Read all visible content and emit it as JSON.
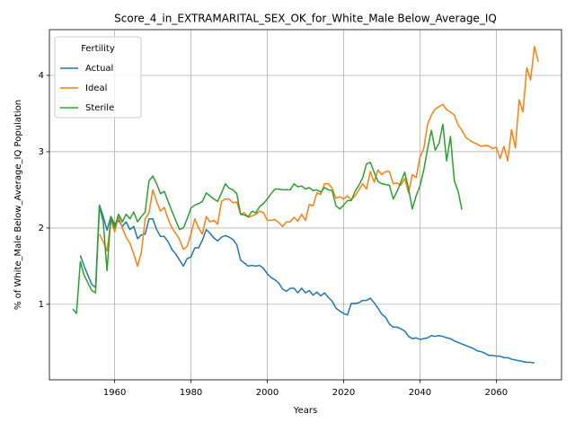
{
  "chart_data": {
    "type": "line",
    "title": "Score_4_in_EXTRAMARITAL_SEX_OK_for_White_Male Below_Average_IQ",
    "xlabel": "Years",
    "ylabel": "% of White_Male Below_Average_IQ Population",
    "legend_title": "Fertility",
    "legend": "upper left",
    "grid": true,
    "xlim": [
      1942.9,
      2077.1
    ],
    "ylim": [
      0.01,
      4.6
    ],
    "xticks": [
      1960,
      1980,
      2000,
      2020,
      2040,
      2060
    ],
    "yticks": [
      1,
      2,
      3,
      4
    ],
    "x": [
      1949,
      1950,
      1951,
      1952,
      1953,
      1954,
      1955,
      1956,
      1957,
      1958,
      1959,
      1960,
      1961,
      1962,
      1963,
      1964,
      1965,
      1966,
      1967,
      1968,
      1969,
      1970,
      1971,
      1972,
      1973,
      1974,
      1975,
      1976,
      1977,
      1978,
      1979,
      1980,
      1981,
      1982,
      1983,
      1984,
      1985,
      1986,
      1987,
      1988,
      1989,
      1990,
      1991,
      1992,
      1993,
      1994,
      1995,
      1996,
      1997,
      1998,
      1999,
      2000,
      2001,
      2002,
      2003,
      2004,
      2005,
      2006,
      2007,
      2008,
      2009,
      2010,
      2011,
      2012,
      2013,
      2014,
      2015,
      2016,
      2017,
      2018,
      2019,
      2020,
      2021,
      2022,
      2023,
      2024,
      2025,
      2026,
      2027,
      2028,
      2029,
      2030,
      2031,
      2032,
      2033,
      2034,
      2035,
      2036,
      2037,
      2038,
      2039,
      2040,
      2041,
      2042,
      2043,
      2044,
      2045,
      2046,
      2047,
      2048,
      2049,
      2050,
      2051,
      2052,
      2053,
      2054,
      2055,
      2056,
      2057,
      2058,
      2059,
      2060,
      2061,
      2062,
      2063,
      2064,
      2065,
      2066,
      2067,
      2068,
      2069,
      2070,
      2071
    ],
    "series": [
      {
        "name": "Actual",
        "color": "#1f77b4",
        "values": [
          null,
          null,
          1.64,
          1.5,
          1.38,
          1.26,
          1.22,
          2.3,
          2.15,
          1.97,
          2.15,
          2.05,
          2.1,
          2.02,
          2.08,
          1.98,
          2.02,
          1.86,
          1.91,
          1.92,
          2.12,
          2.12,
          1.98,
          1.89,
          1.89,
          1.82,
          1.72,
          1.66,
          1.58,
          1.5,
          1.6,
          1.62,
          1.74,
          1.74,
          1.84,
          1.98,
          1.93,
          1.87,
          1.83,
          1.88,
          1.9,
          1.88,
          1.85,
          1.78,
          1.58,
          1.54,
          1.5,
          1.51,
          1.5,
          1.51,
          1.47,
          1.4,
          1.35,
          1.32,
          1.28,
          1.2,
          1.17,
          1.21,
          1.21,
          1.15,
          1.21,
          1.15,
          1.18,
          1.12,
          1.16,
          1.11,
          1.15,
          1.09,
          1.04,
          0.95,
          0.91,
          0.88,
          0.86,
          1.01,
          1.01,
          1.02,
          1.05,
          1.05,
          1.08,
          1.02,
          0.95,
          0.87,
          0.83,
          0.74,
          0.7,
          0.7,
          0.68,
          0.65,
          0.58,
          0.55,
          0.56,
          0.54,
          0.55,
          0.56,
          0.59,
          0.58,
          0.59,
          0.58,
          0.56,
          0.55,
          0.52,
          0.5,
          0.48,
          0.46,
          0.44,
          0.42,
          0.39,
          0.38,
          0.36,
          0.33,
          0.33,
          0.32,
          0.32,
          0.3,
          0.3,
          0.28,
          0.27,
          0.26,
          0.25,
          0.24,
          0.24,
          0.23,
          null
        ]
      },
      {
        "name": "Ideal",
        "color": "#ff7f0e",
        "values": [
          null,
          null,
          null,
          null,
          null,
          null,
          null,
          1.92,
          1.82,
          1.7,
          2.1,
          1.95,
          2.15,
          2.0,
          1.88,
          1.8,
          1.66,
          1.5,
          1.68,
          2.12,
          2.2,
          2.5,
          2.35,
          2.22,
          2.27,
          2.12,
          2.0,
          1.93,
          1.85,
          1.72,
          1.76,
          1.92,
          2.12,
          2.0,
          1.92,
          2.15,
          2.08,
          2.1,
          2.05,
          2.35,
          2.38,
          2.38,
          2.33,
          2.34,
          2.18,
          2.2,
          2.14,
          2.16,
          2.18,
          2.22,
          2.2,
          2.1,
          2.1,
          2.11,
          2.07,
          2.02,
          2.08,
          2.08,
          2.14,
          2.09,
          2.18,
          2.1,
          2.31,
          2.29,
          2.46,
          2.44,
          2.58,
          2.58,
          2.52,
          2.39,
          2.41,
          2.38,
          2.42,
          2.37,
          2.42,
          2.5,
          2.58,
          2.51,
          2.74,
          2.6,
          2.76,
          2.7,
          2.74,
          2.74,
          2.58,
          2.59,
          2.56,
          2.65,
          2.46,
          2.7,
          2.66,
          2.93,
          3.04,
          3.36,
          3.48,
          3.56,
          3.59,
          3.62,
          3.55,
          3.52,
          3.48,
          3.35,
          3.28,
          3.19,
          3.15,
          3.12,
          3.1,
          3.07,
          3.08,
          3.08,
          3.04,
          3.06,
          2.91,
          3.07,
          2.88,
          3.29,
          3.05,
          3.68,
          3.52,
          4.1,
          3.94,
          4.38,
          4.18
        ]
      },
      {
        "name": "Sterile",
        "color": "#2ca02c",
        "values": [
          0.94,
          0.88,
          1.56,
          1.38,
          1.28,
          1.18,
          1.15,
          2.28,
          2.08,
          1.44,
          2.15,
          2.0,
          2.18,
          2.08,
          2.18,
          2.12,
          2.21,
          2.08,
          2.15,
          2.21,
          2.62,
          2.68,
          2.58,
          2.45,
          2.48,
          2.35,
          2.22,
          2.1,
          1.98,
          2.0,
          2.12,
          2.26,
          2.3,
          2.32,
          2.35,
          2.46,
          2.42,
          2.38,
          2.35,
          2.46,
          2.58,
          2.52,
          2.5,
          2.45,
          2.18,
          2.17,
          2.15,
          2.22,
          2.2,
          2.28,
          2.32,
          2.38,
          2.45,
          2.51,
          2.51,
          2.5,
          2.5,
          2.5,
          2.58,
          2.54,
          2.55,
          2.51,
          2.53,
          2.49,
          2.5,
          2.47,
          2.53,
          2.5,
          2.49,
          2.29,
          2.25,
          2.3,
          2.36,
          2.36,
          2.48,
          2.56,
          2.66,
          2.84,
          2.86,
          2.73,
          2.61,
          2.58,
          2.57,
          2.56,
          2.38,
          2.48,
          2.6,
          2.73,
          2.52,
          2.25,
          2.42,
          2.55,
          2.76,
          3.04,
          3.28,
          3.02,
          3.11,
          3.36,
          2.88,
          3.2,
          2.62,
          2.48,
          2.24,
          null,
          null,
          null,
          null,
          null,
          null,
          null,
          null,
          null,
          null,
          null,
          null,
          null,
          null,
          null,
          null,
          null,
          null,
          null,
          null
        ]
      }
    ]
  }
}
